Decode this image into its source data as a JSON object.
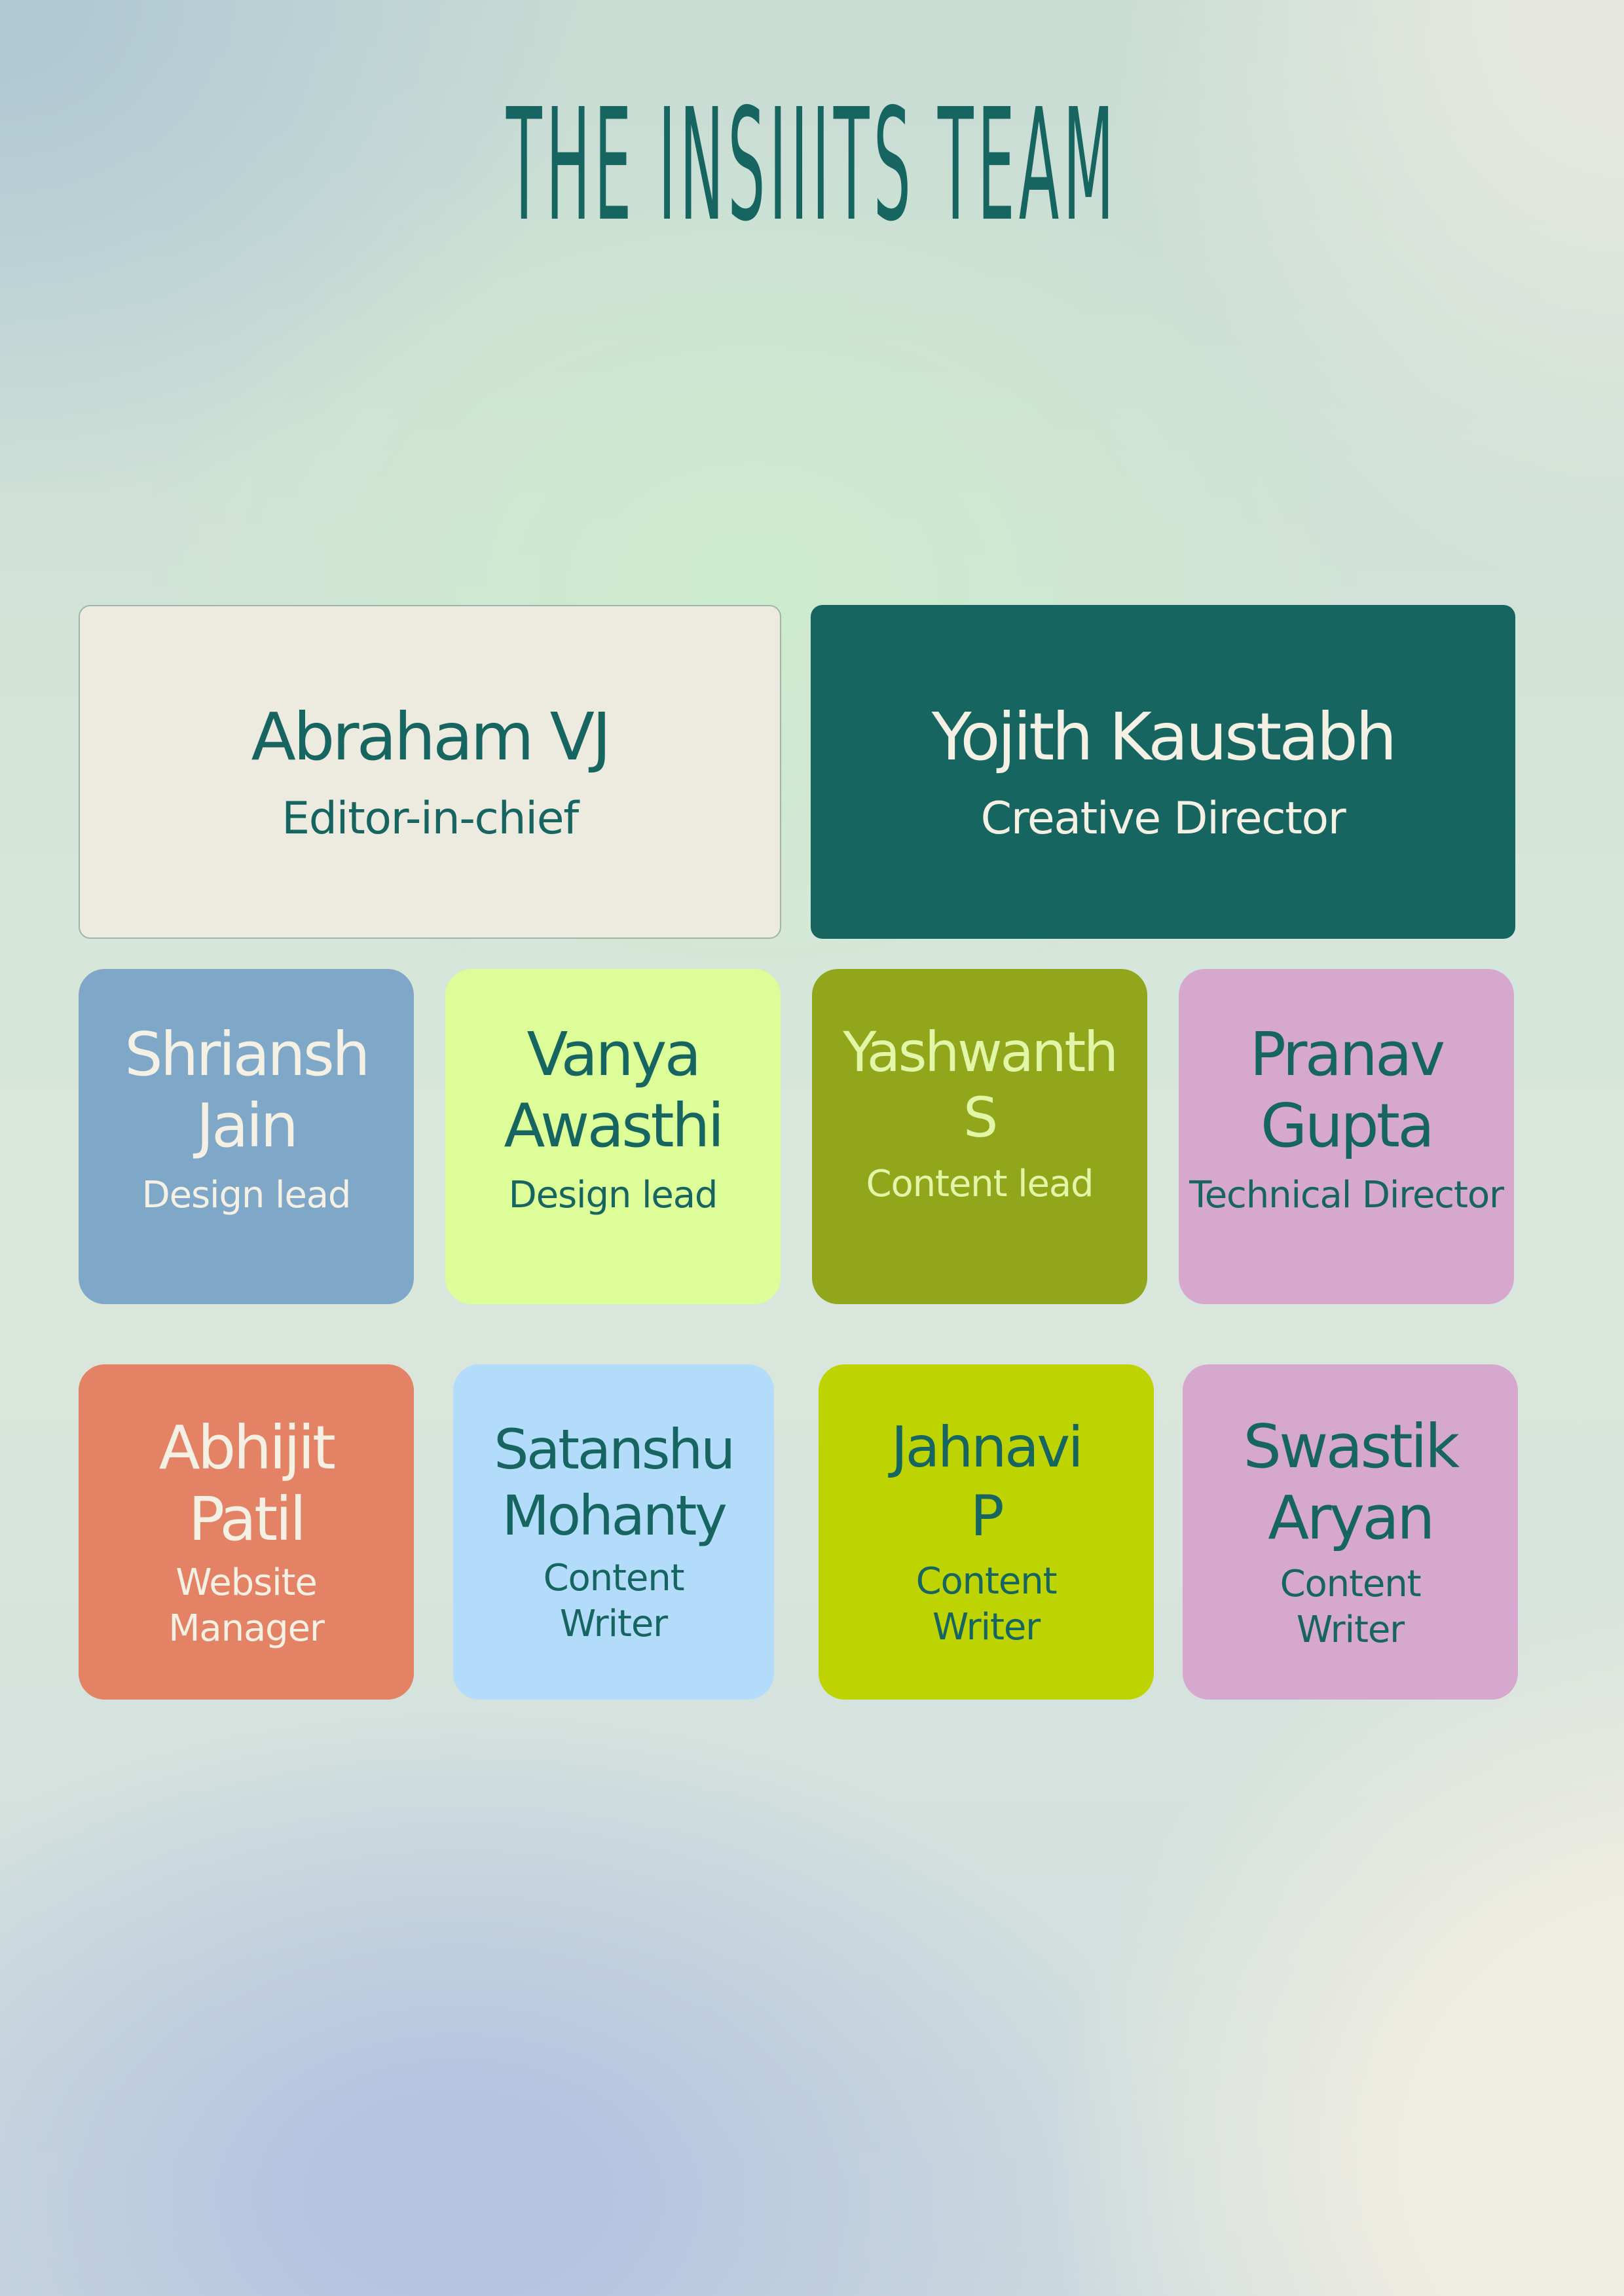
{
  "title": "THE INSIIITS TEAM",
  "leads": [
    {
      "name": "Abraham VJ",
      "role": "Editor-in-chief",
      "bg": "#edebe0",
      "fg": "#166560"
    },
    {
      "name": "Yojith Kaustabh",
      "role": "Creative Director",
      "bg": "#166560",
      "fg": "#f4f0e4"
    }
  ],
  "row1": [
    {
      "name": "Shriansh\nJain",
      "role": "Design lead",
      "bg": "#7fa8c8",
      "fg": "#f4f0e4"
    },
    {
      "name": "Vanya\nAwasthi",
      "role": "Design lead",
      "bg": "#dcfd98",
      "fg": "#166560"
    },
    {
      "name": "Yashwanth\nS",
      "role": "Content lead",
      "bg": "#92a61c",
      "fg": "#e2f6a8"
    },
    {
      "name": "Pranav\nGupta",
      "role": "Technical Director",
      "bg": "#d6a8d0",
      "fg": "#166560"
    }
  ],
  "row2": [
    {
      "name": "Abhijit\nPatil",
      "role": "Website\nManager",
      "bg": "#e38264",
      "fg": "#f4f0e4"
    },
    {
      "name": "Satanshu\nMohanty",
      "role": "Content\nWriter",
      "bg": "#b3dcfa",
      "fg": "#166560"
    },
    {
      "name": "Jahnavi\nP",
      "role": "Content\nWriter",
      "bg": "#bed402",
      "fg": "#166560"
    },
    {
      "name": "Swastik\nAryan",
      "role": "Content\nWriter",
      "bg": "#d6a8d0",
      "fg": "#166560"
    }
  ]
}
